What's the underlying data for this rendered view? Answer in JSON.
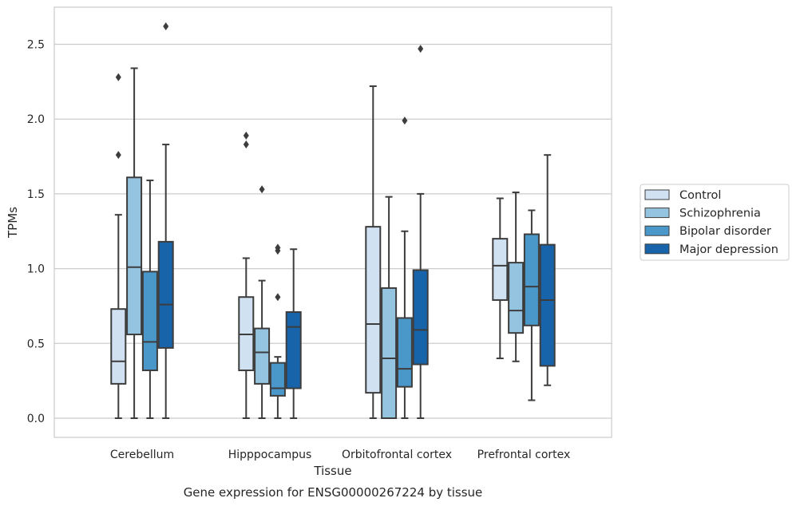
{
  "chart_data": {
    "type": "box",
    "xlabel": "Tissue",
    "ylabel": "TPMs",
    "caption": "Gene expression for ENSG00000267224 by tissue",
    "ylim": [
      -0.13,
      2.76
    ],
    "yticks": [
      "0.0",
      "0.5",
      "1.0",
      "1.5",
      "2.0",
      "2.5"
    ],
    "grid": "horizontal",
    "legend_position": "right",
    "categories": [
      "Cerebellum",
      "Hipppocampus",
      "Orbitofrontal cortex",
      "Prefrontal cortex"
    ],
    "series": [
      {
        "name": "Control",
        "color": "#d0e1f2",
        "boxes": [
          {
            "whisker_low": 0.0,
            "q1": 0.23,
            "median": 0.38,
            "q3": 0.73,
            "whisker_high": 1.36,
            "outliers": [
              1.76,
              2.28
            ]
          },
          {
            "whisker_low": 0.0,
            "q1": 0.32,
            "median": 0.56,
            "q3": 0.81,
            "whisker_high": 1.07,
            "outliers": [
              1.83,
              1.89
            ]
          },
          {
            "whisker_low": 0.0,
            "q1": 0.17,
            "median": 0.63,
            "q3": 1.28,
            "whisker_high": 2.22,
            "outliers": []
          },
          {
            "whisker_low": 0.4,
            "q1": 0.79,
            "median": 1.02,
            "q3": 1.2,
            "whisker_high": 1.47,
            "outliers": []
          }
        ]
      },
      {
        "name": "Schizophrenia",
        "color": "#94c4df",
        "boxes": [
          {
            "whisker_low": 0.0,
            "q1": 0.56,
            "median": 1.01,
            "q3": 1.61,
            "whisker_high": 2.34,
            "outliers": []
          },
          {
            "whisker_low": 0.0,
            "q1": 0.23,
            "median": 0.44,
            "q3": 0.6,
            "whisker_high": 0.92,
            "outliers": [
              1.53
            ]
          },
          {
            "whisker_low": 0.0,
            "q1": 0.0,
            "median": 0.4,
            "q3": 0.87,
            "whisker_high": 1.48,
            "outliers": []
          },
          {
            "whisker_low": 0.38,
            "q1": 0.57,
            "median": 0.72,
            "q3": 1.04,
            "whisker_high": 1.51,
            "outliers": []
          }
        ]
      },
      {
        "name": "Bipolar disorder",
        "color": "#4a98c9",
        "boxes": [
          {
            "whisker_low": 0.0,
            "q1": 0.32,
            "median": 0.51,
            "q3": 0.98,
            "whisker_high": 1.59,
            "outliers": []
          },
          {
            "whisker_low": 0.0,
            "q1": 0.15,
            "median": 0.2,
            "q3": 0.37,
            "whisker_high": 0.41,
            "outliers": [
              0.81,
              1.12,
              1.14
            ]
          },
          {
            "whisker_low": 0.0,
            "q1": 0.21,
            "median": 0.33,
            "q3": 0.67,
            "whisker_high": 1.25,
            "outliers": [
              1.99
            ]
          },
          {
            "whisker_low": 0.12,
            "q1": 0.62,
            "median": 0.88,
            "q3": 1.23,
            "whisker_high": 1.39,
            "outliers": []
          }
        ]
      },
      {
        "name": "Major depression",
        "color": "#1764ab",
        "boxes": [
          {
            "whisker_low": 0.0,
            "q1": 0.47,
            "median": 0.76,
            "q3": 1.18,
            "whisker_high": 1.83,
            "outliers": [
              2.62
            ]
          },
          {
            "whisker_low": 0.0,
            "q1": 0.2,
            "median": 0.61,
            "q3": 0.71,
            "whisker_high": 1.13,
            "outliers": []
          },
          {
            "whisker_low": 0.0,
            "q1": 0.36,
            "median": 0.59,
            "q3": 0.99,
            "whisker_high": 1.5,
            "outliers": [
              2.47
            ]
          },
          {
            "whisker_low": 0.22,
            "q1": 0.35,
            "median": 0.79,
            "q3": 1.16,
            "whisker_high": 1.76,
            "outliers": []
          }
        ]
      }
    ]
  }
}
